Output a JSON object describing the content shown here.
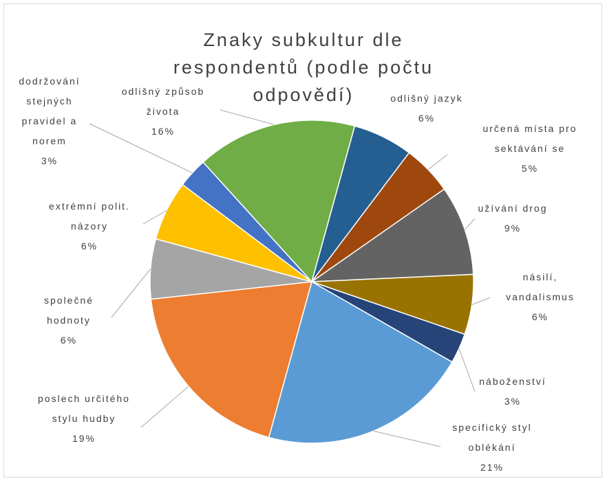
{
  "chart_data": {
    "type": "pie",
    "title": "Znaky subkultur dle respondentů (podle počtu odpovědí)",
    "categories": [
      "odlišný jazyk",
      "určená místa pro sektávání se",
      "užívání drog",
      "násilí, vandalismus",
      "náboženství",
      "specifický styl oblékání",
      "poslech určitého stylu hudby",
      "společné hodnoty",
      "extrémní polit. názory",
      "dodržování stejných pravidel a norem",
      "odlišný způsob života"
    ],
    "values": [
      6,
      5,
      9,
      6,
      3,
      21,
      19,
      6,
      6,
      3,
      16
    ],
    "value_labels": [
      "6%",
      "5%",
      "9%",
      "6%",
      "3%",
      "21%",
      "19%",
      "6%",
      "6%",
      "3%",
      "16%"
    ],
    "colors": [
      "#255e91",
      "#9e480e",
      "#636363",
      "#997300",
      "#264478",
      "#5b9bd5",
      "#ed7d31",
      "#a5a5a5",
      "#ffc000",
      "#4472c4",
      "#70ad47"
    ]
  }
}
